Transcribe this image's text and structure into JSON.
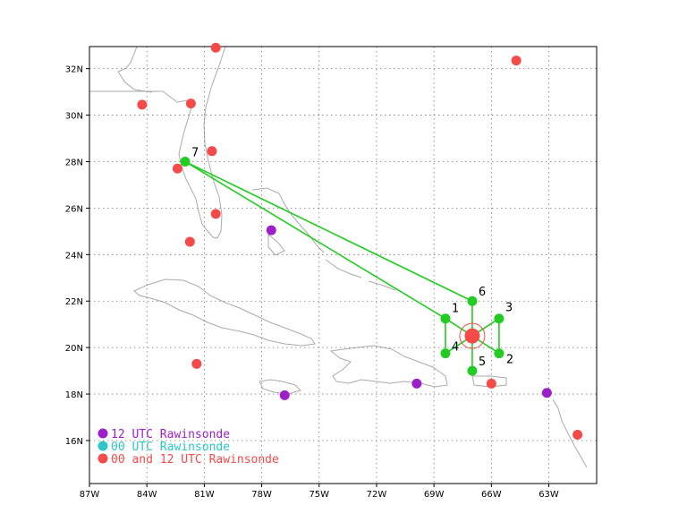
{
  "map": {
    "x_ticks": [
      "87W",
      "84W",
      "81W",
      "78W",
      "75W",
      "72W",
      "69W",
      "66W",
      "63W"
    ],
    "y_ticks": [
      "32N",
      "30N",
      "28N",
      "26N",
      "24N",
      "22N",
      "20N",
      "18N",
      "16N"
    ],
    "lon_range": [
      -87,
      -60.5
    ],
    "lat_range": [
      14.15,
      32.95
    ],
    "grid": "dotted"
  },
  "legend": {
    "items": [
      {
        "label": "12 UTC Rawinsonde",
        "color": "#9d1fc9"
      },
      {
        "label": "00 UTC Rawinsonde",
        "color": "#2bc7c7"
      },
      {
        "label": "00 and 12 UTC Rawinsonde",
        "color": "#f54a4a"
      }
    ]
  },
  "colors": {
    "purple": "#9d1fc9",
    "cyan": "#2bc7c7",
    "red": "#f54a4a",
    "green": "#22cc22",
    "coast": "#aaaaaa"
  },
  "stations_red": [
    {
      "lon": -80.4,
      "lat": 32.9
    },
    {
      "lon": -64.7,
      "lat": 32.35
    },
    {
      "lon": -84.25,
      "lat": 30.45
    },
    {
      "lon": -81.7,
      "lat": 30.5
    },
    {
      "lon": -80.6,
      "lat": 28.45
    },
    {
      "lon": -82.4,
      "lat": 27.7
    },
    {
      "lon": -80.4,
      "lat": 25.75
    },
    {
      "lon": -81.75,
      "lat": 24.55
    },
    {
      "lon": -81.4,
      "lat": 19.3
    },
    {
      "lon": -66.0,
      "lat": 18.45
    },
    {
      "lon": -61.5,
      "lat": 16.25
    }
  ],
  "stations_purple": [
    {
      "lon": -77.5,
      "lat": 25.05
    },
    {
      "lon": -76.8,
      "lat": 17.95
    },
    {
      "lon": -69.9,
      "lat": 18.45
    },
    {
      "lon": -63.1,
      "lat": 18.05
    }
  ],
  "storm_center": {
    "lon": -67.0,
    "lat": 20.5
  },
  "track_points": [
    {
      "label": "1",
      "lon": -68.4,
      "lat": 21.25
    },
    {
      "label": "2",
      "lon": -65.6,
      "lat": 19.75
    },
    {
      "label": "3",
      "lon": -65.6,
      "lat": 21.25
    },
    {
      "label": "4",
      "lon": -68.4,
      "lat": 19.75
    },
    {
      "label": "5",
      "lon": -67.0,
      "lat": 19.0
    },
    {
      "label": "6",
      "lon": -67.0,
      "lat": 22.0
    },
    {
      "label": "7",
      "lon": -82.0,
      "lat": 28.0
    }
  ]
}
